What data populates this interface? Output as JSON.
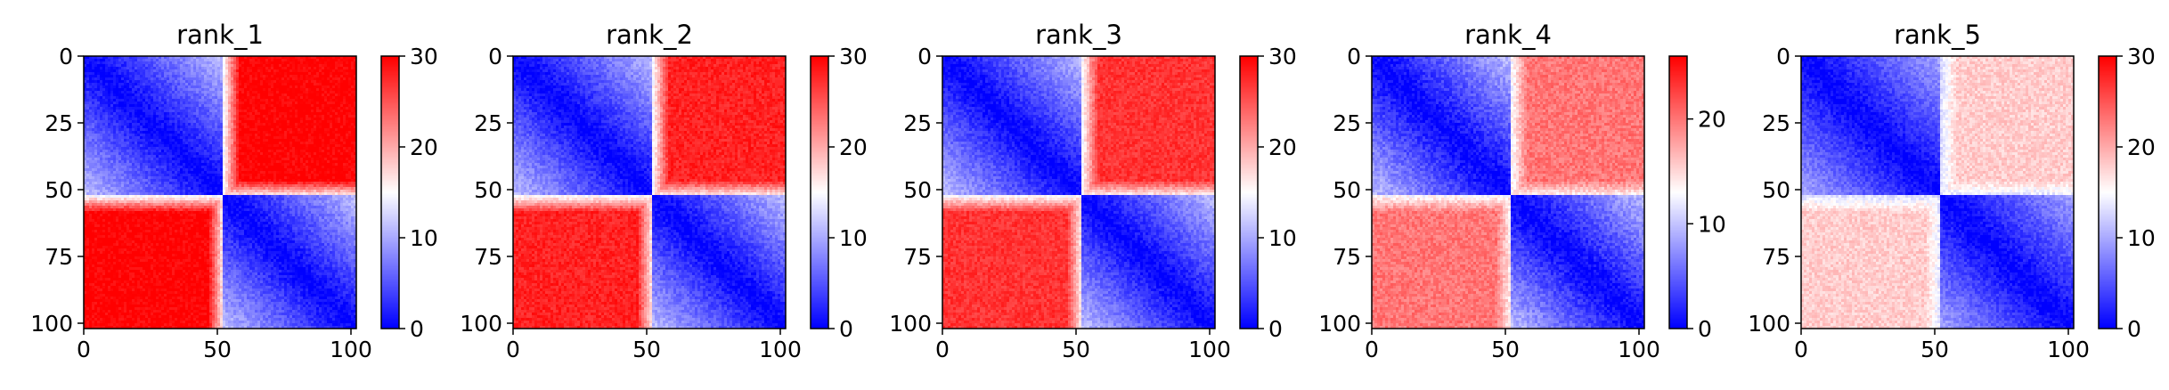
{
  "chart_data": [
    {
      "type": "heatmap",
      "title": "rank_1",
      "xlabel": "",
      "ylabel": "",
      "x_ticks": [
        0,
        50,
        100
      ],
      "y_ticks": [
        0,
        25,
        50,
        75,
        100
      ],
      "xlim": [
        0,
        102
      ],
      "ylim": [
        102,
        0
      ],
      "colorbar": {
        "min": 0,
        "max": 30,
        "ticks": [
          0,
          10,
          20,
          30
        ],
        "colormap": "bwr"
      },
      "matrix_description": {
        "size": 102,
        "block_boundary": 52,
        "diagonal_blocks_value": 0,
        "off_diagonal_blocks_value": 30,
        "boundary_value": 15
      }
    },
    {
      "type": "heatmap",
      "title": "rank_2",
      "xlabel": "",
      "ylabel": "",
      "x_ticks": [
        0,
        50,
        100
      ],
      "y_ticks": [
        0,
        25,
        50,
        75,
        100
      ],
      "xlim": [
        0,
        102
      ],
      "ylim": [
        102,
        0
      ],
      "colorbar": {
        "min": 0,
        "max": 30,
        "ticks": [
          0,
          10,
          20,
          30
        ],
        "colormap": "bwr"
      },
      "matrix_description": {
        "size": 102,
        "block_boundary": 52,
        "diagonal_blocks_value": 0,
        "off_diagonal_blocks_value": 28,
        "boundary_value": 15
      }
    },
    {
      "type": "heatmap",
      "title": "rank_3",
      "xlabel": "",
      "ylabel": "",
      "x_ticks": [
        0,
        50,
        100
      ],
      "y_ticks": [
        0,
        25,
        50,
        75,
        100
      ],
      "xlim": [
        0,
        102
      ],
      "ylim": [
        102,
        0
      ],
      "colorbar": {
        "min": 0,
        "max": 30,
        "ticks": [
          0,
          10,
          20,
          30
        ],
        "colormap": "bwr"
      },
      "matrix_description": {
        "size": 102,
        "block_boundary": 52,
        "diagonal_blocks_value": 0,
        "off_diagonal_blocks_value": 27,
        "boundary_value": 15
      }
    },
    {
      "type": "heatmap",
      "title": "rank_4",
      "xlabel": "",
      "ylabel": "",
      "x_ticks": [
        0,
        50,
        100
      ],
      "y_ticks": [
        0,
        25,
        50,
        75,
        100
      ],
      "xlim": [
        0,
        102
      ],
      "ylim": [
        102,
        0
      ],
      "colorbar": {
        "min": 0,
        "max": 26,
        "ticks": [
          0,
          10,
          20
        ],
        "colormap": "bwr"
      },
      "matrix_description": {
        "size": 102,
        "block_boundary": 52,
        "diagonal_blocks_value": 0,
        "off_diagonal_blocks_value": 20,
        "boundary_value": 13
      }
    },
    {
      "type": "heatmap",
      "title": "rank_5",
      "xlabel": "",
      "ylabel": "",
      "x_ticks": [
        0,
        50,
        100
      ],
      "y_ticks": [
        0,
        25,
        50,
        75,
        100
      ],
      "xlim": [
        0,
        102
      ],
      "ylim": [
        102,
        0
      ],
      "colorbar": {
        "min": 0,
        "max": 30,
        "ticks": [
          0,
          10,
          20,
          30
        ],
        "colormap": "bwr"
      },
      "matrix_description": {
        "size": 102,
        "block_boundary": 52,
        "diagonal_blocks_value": 0,
        "off_diagonal_blocks_value": 18,
        "boundary_value": 13
      }
    }
  ]
}
